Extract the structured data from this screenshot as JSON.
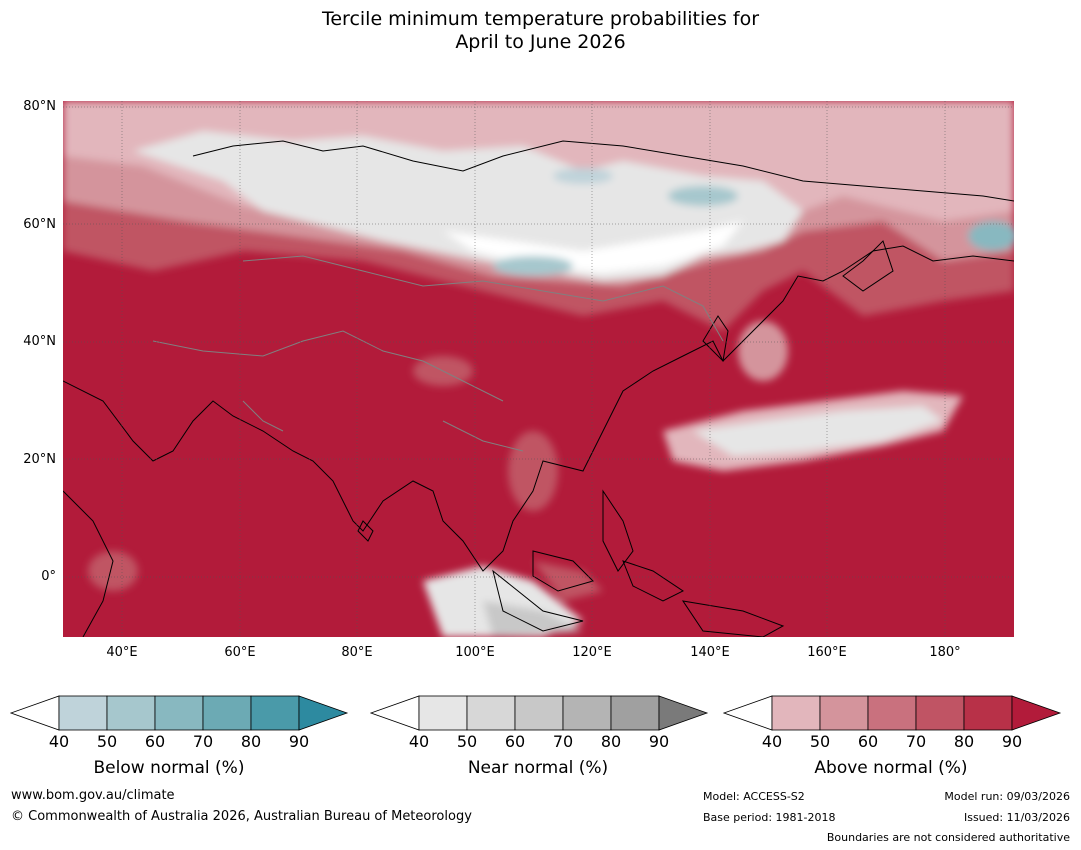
{
  "title_line1": "Tercile minimum temperature probabilities for",
  "title_line2": "April to June 2026",
  "lat_labels": [
    "80°N",
    "60°N",
    "40°N",
    "20°N",
    "0°"
  ],
  "lon_labels": [
    "40°E",
    "60°E",
    "80°E",
    "100°E",
    "120°E",
    "140°E",
    "160°E",
    "180°"
  ],
  "colorbars": [
    {
      "title": "Below normal (%)",
      "ticks": [
        "40",
        "50",
        "60",
        "70",
        "80",
        "90"
      ],
      "colors": [
        "#bfd3da",
        "#a6c7cd",
        "#88b8c0",
        "#6caab4",
        "#4a9aa9",
        "#2d8aa0"
      ]
    },
    {
      "title": "Near normal (%)",
      "ticks": [
        "40",
        "50",
        "60",
        "70",
        "80",
        "90"
      ],
      "colors": [
        "#e6e6e6",
        "#d7d7d7",
        "#c8c8c8",
        "#b4b4b4",
        "#a0a0a0",
        "#7a7a7a"
      ]
    },
    {
      "title": "Above normal (%)",
      "ticks": [
        "40",
        "50",
        "60",
        "70",
        "80",
        "90"
      ],
      "colors": [
        "#e2b6bc",
        "#d4949c",
        "#c9717e",
        "#c05464",
        "#b83148",
        "#b21b3a"
      ]
    }
  ],
  "footer": {
    "website": "www.bom.gov.au/climate",
    "copyright": "© Commonwealth of Australia 2026, Australian Bureau of Meteorology",
    "model": "Model: ACCESS-S2",
    "base_period": "Base period: 1981-2018",
    "model_run": "Model run: 09/03/2026",
    "issued": "Issued: 11/03/2026",
    "boundaries": "Boundaries are not considered authoritative"
  },
  "colors": {
    "above_high": "#b21b3a",
    "above_mid": "#c05464",
    "above_low": "#e2b6bc",
    "near": "#e6e6e6",
    "below": "#a6c7cd"
  }
}
